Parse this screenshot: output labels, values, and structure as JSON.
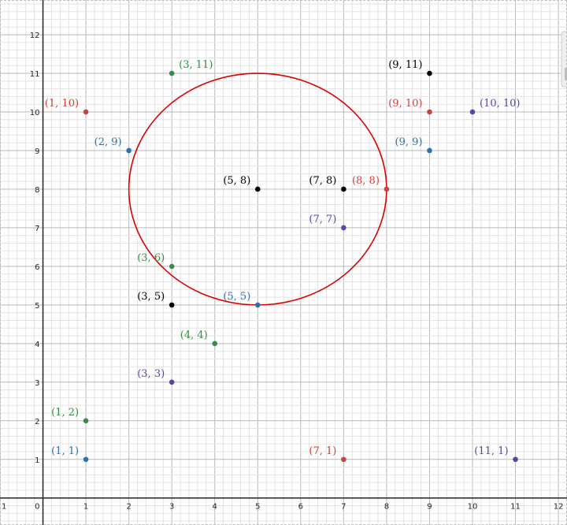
{
  "colors": {
    "red": "#c74440",
    "blue": "#2d70b3",
    "green": "#388c46",
    "purple": "#6042a6",
    "black": "#000000",
    "circle": "#dd0000"
  },
  "chart_data": {
    "type": "scatter",
    "xlim": [
      -1,
      12.2
    ],
    "ylim": [
      -0.7,
      12.9
    ],
    "grid": true,
    "x_ticks": [
      1,
      2,
      3,
      4,
      5,
      6,
      7,
      8,
      9,
      10,
      11,
      12
    ],
    "y_ticks": [
      1,
      2,
      3,
      4,
      5,
      6,
      7,
      8,
      9,
      10,
      11,
      12
    ],
    "origin_label": "0",
    "left_edge_label": "1",
    "points": [
      {
        "x": 1,
        "y": 1,
        "label": "(1, 1)",
        "color": "blue",
        "anchor": "above-left"
      },
      {
        "x": 1,
        "y": 2,
        "label": "(1, 2)",
        "color": "green",
        "anchor": "above-left"
      },
      {
        "x": 3,
        "y": 3,
        "label": "(3, 3)",
        "color": "purple",
        "anchor": "above-left"
      },
      {
        "x": 4,
        "y": 4,
        "label": "(4, 4)",
        "color": "green",
        "anchor": "above-left"
      },
      {
        "x": 3,
        "y": 5,
        "label": "(3, 5)",
        "color": "black",
        "anchor": "above-left"
      },
      {
        "x": 5,
        "y": 5,
        "label": "(5, 5)",
        "color": "blue",
        "anchor": "above-left"
      },
      {
        "x": 3,
        "y": 6,
        "label": "(3, 6)",
        "color": "green",
        "anchor": "above-left"
      },
      {
        "x": 7,
        "y": 7,
        "label": "(7, 7)",
        "color": "purple",
        "anchor": "above-left"
      },
      {
        "x": 5,
        "y": 8,
        "label": "(5, 8)",
        "color": "black",
        "anchor": "above-left"
      },
      {
        "x": 7,
        "y": 8,
        "label": "(7, 8)",
        "color": "black",
        "anchor": "above-left"
      },
      {
        "x": 8,
        "y": 8,
        "label": "(8, 8)",
        "color": "red",
        "anchor": "above-left"
      },
      {
        "x": 2,
        "y": 9,
        "label": "(2, 9)",
        "color": "blue",
        "anchor": "above-left"
      },
      {
        "x": 9,
        "y": 9,
        "label": "(9, 9)",
        "color": "blue",
        "anchor": "above-left"
      },
      {
        "x": 1,
        "y": 10,
        "label": "(1, 10)",
        "color": "red",
        "anchor": "above-left"
      },
      {
        "x": 9,
        "y": 10,
        "label": "(9, 10)",
        "color": "red",
        "anchor": "above-left"
      },
      {
        "x": 10,
        "y": 10,
        "label": "(10, 10)",
        "color": "purple",
        "anchor": "above-right"
      },
      {
        "x": 3,
        "y": 11,
        "label": "(3, 11)",
        "color": "green",
        "anchor": "above-right"
      },
      {
        "x": 9,
        "y": 11,
        "label": "(9, 11)",
        "color": "black",
        "anchor": "above-left"
      },
      {
        "x": 7,
        "y": 1,
        "label": "(7, 1)",
        "color": "red",
        "anchor": "above-left"
      },
      {
        "x": 11,
        "y": 1,
        "label": "(11, 1)",
        "color": "purple",
        "anchor": "above-left"
      }
    ],
    "curves": [
      {
        "type": "ellipse",
        "cx": 5,
        "cy": 8,
        "rx": 3,
        "ry": 3,
        "color": "circle"
      }
    ]
  }
}
